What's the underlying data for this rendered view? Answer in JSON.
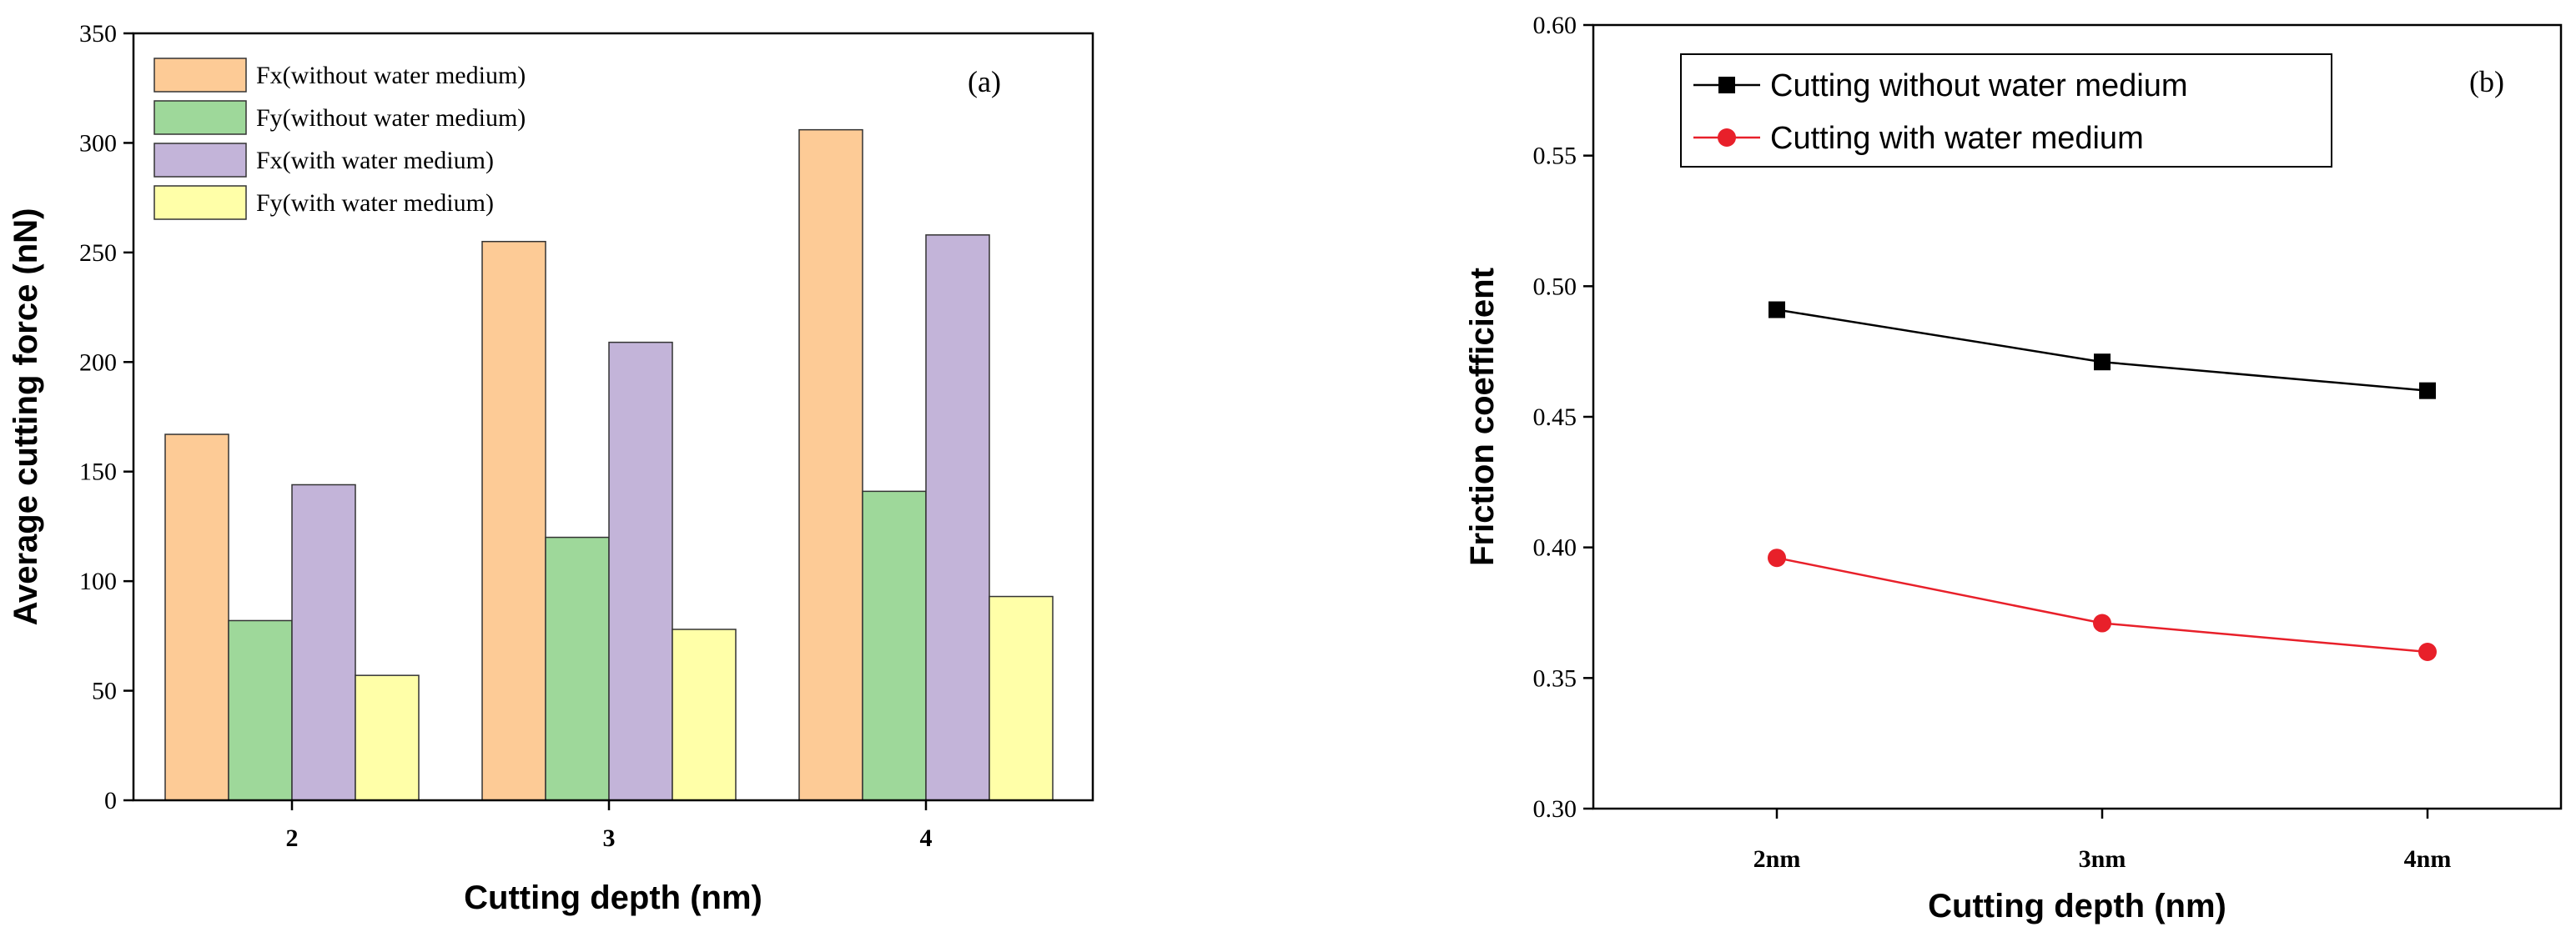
{
  "chart_data": [
    {
      "type": "bar",
      "panel_label": "(a)",
      "xlabel": "Cutting depth (nm)",
      "ylabel": "Average cutting force (nN)",
      "categories": [
        "2",
        "3",
        "4"
      ],
      "ylim": [
        0,
        350
      ],
      "yticks": [
        0,
        50,
        100,
        150,
        200,
        250,
        300,
        350
      ],
      "ytick_labels": [
        "0",
        "50",
        "100",
        "150",
        "200",
        "250",
        "300",
        "350"
      ],
      "legend_position": "top-left",
      "series": [
        {
          "name": "Fx(without water medium)",
          "color": "#FDCB96",
          "values": [
            167,
            255,
            306
          ]
        },
        {
          "name": "Fy(without water medium)",
          "color": "#9ED89A",
          "values": [
            82,
            120,
            141
          ]
        },
        {
          "name": "Fx(with water medium)",
          "color": "#C3B4D9",
          "values": [
            144,
            209,
            258
          ]
        },
        {
          "name": "Fy(with water medium)",
          "color": "#FFFFA8",
          "values": [
            57,
            78,
            93
          ]
        }
      ]
    },
    {
      "type": "line",
      "panel_label": "(b)",
      "xlabel": "Cutting depth (nm)",
      "ylabel": "Friction coefficient",
      "categories": [
        "2nm",
        "3nm",
        "4nm"
      ],
      "ylim": [
        0.3,
        0.6
      ],
      "yticks": [
        0.3,
        0.35,
        0.4,
        0.45,
        0.5,
        0.55,
        0.6
      ],
      "ytick_labels": [
        "0.30",
        "0.35",
        "0.40",
        "0.45",
        "0.50",
        "0.55",
        "0.60"
      ],
      "legend_position": "top-left",
      "series": [
        {
          "name": "Cutting without water medium",
          "color": "#000000",
          "marker": "square",
          "values": [
            0.491,
            0.471,
            0.46
          ]
        },
        {
          "name": "Cutting with water medium",
          "color": "#E8202A",
          "marker": "circle",
          "values": [
            0.396,
            0.371,
            0.36
          ]
        }
      ]
    }
  ]
}
